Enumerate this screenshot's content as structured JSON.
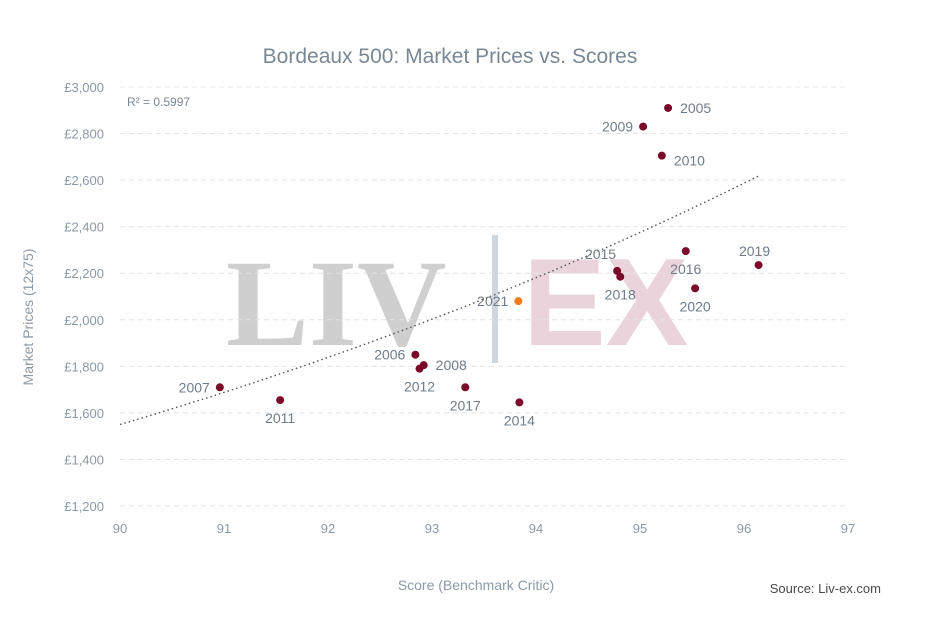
{
  "chart_data": {
    "type": "scatter",
    "title": "Bordeaux 500: Market Prices vs. Scores",
    "xlabel": "Score (Benchmark Critic)",
    "ylabel": "Market Prices (12x75)",
    "xlim": [
      90,
      97
    ],
    "ylim": [
      1200,
      3000
    ],
    "x_ticks": [
      "90",
      "91",
      "92",
      "93",
      "94",
      "95",
      "96",
      "97"
    ],
    "y_ticks": [
      "£1,200",
      "£1,400",
      "£1,600",
      "£1,800",
      "£2,000",
      "£2,200",
      "£2,400",
      "£2,600",
      "£2,800",
      "£3,000"
    ],
    "grid": true,
    "r_squared_label": "R² = 0.5997",
    "trendline": {
      "type": "exponential",
      "x_range": [
        90,
        96.15
      ],
      "y_start": 1550,
      "y_end": 2620
    },
    "points": [
      {
        "label": "2005",
        "x": 95.27,
        "y": 2910,
        "color": "#7b0a2a",
        "label_pos": "right"
      },
      {
        "label": "2009",
        "x": 95.03,
        "y": 2830,
        "color": "#7b0a2a",
        "label_pos": "left"
      },
      {
        "label": "2010",
        "x": 95.21,
        "y": 2705,
        "color": "#7b0a2a",
        "label_pos": "right-below"
      },
      {
        "label": "2015",
        "x": 94.78,
        "y": 2210,
        "color": "#7b0a2a",
        "label_pos": "above-left"
      },
      {
        "label": "2018",
        "x": 94.81,
        "y": 2185,
        "color": "#7b0a2a",
        "label_pos": "below"
      },
      {
        "label": "2016",
        "x": 95.44,
        "y": 2295,
        "color": "#7b0a2a",
        "label_pos": "below"
      },
      {
        "label": "2019",
        "x": 96.14,
        "y": 2235,
        "color": "#7b0a2a",
        "label_pos": "above"
      },
      {
        "label": "2020",
        "x": 95.53,
        "y": 2135,
        "color": "#7b0a2a",
        "label_pos": "below"
      },
      {
        "label": "2021",
        "x": 93.83,
        "y": 2080,
        "color": "#ef7d17",
        "label_pos": "left"
      },
      {
        "label": "2006",
        "x": 92.84,
        "y": 1850,
        "color": "#7b0a2a",
        "label_pos": "left"
      },
      {
        "label": "2008",
        "x": 92.92,
        "y": 1805,
        "color": "#7b0a2a",
        "label_pos": "right"
      },
      {
        "label": "2012",
        "x": 92.88,
        "y": 1790,
        "color": "#7b0a2a",
        "label_pos": "below"
      },
      {
        "label": "2017",
        "x": 93.32,
        "y": 1710,
        "color": "#7b0a2a",
        "label_pos": "below"
      },
      {
        "label": "2014",
        "x": 93.84,
        "y": 1645,
        "color": "#7b0a2a",
        "label_pos": "below"
      },
      {
        "label": "2007",
        "x": 90.96,
        "y": 1710,
        "color": "#7b0a2a",
        "label_pos": "left"
      },
      {
        "label": "2011",
        "x": 91.54,
        "y": 1655,
        "color": "#7b0a2a",
        "label_pos": "below"
      }
    ]
  },
  "watermark": {
    "left": "LIV",
    "right": "EX"
  },
  "source": "Source: Liv-ex.com"
}
